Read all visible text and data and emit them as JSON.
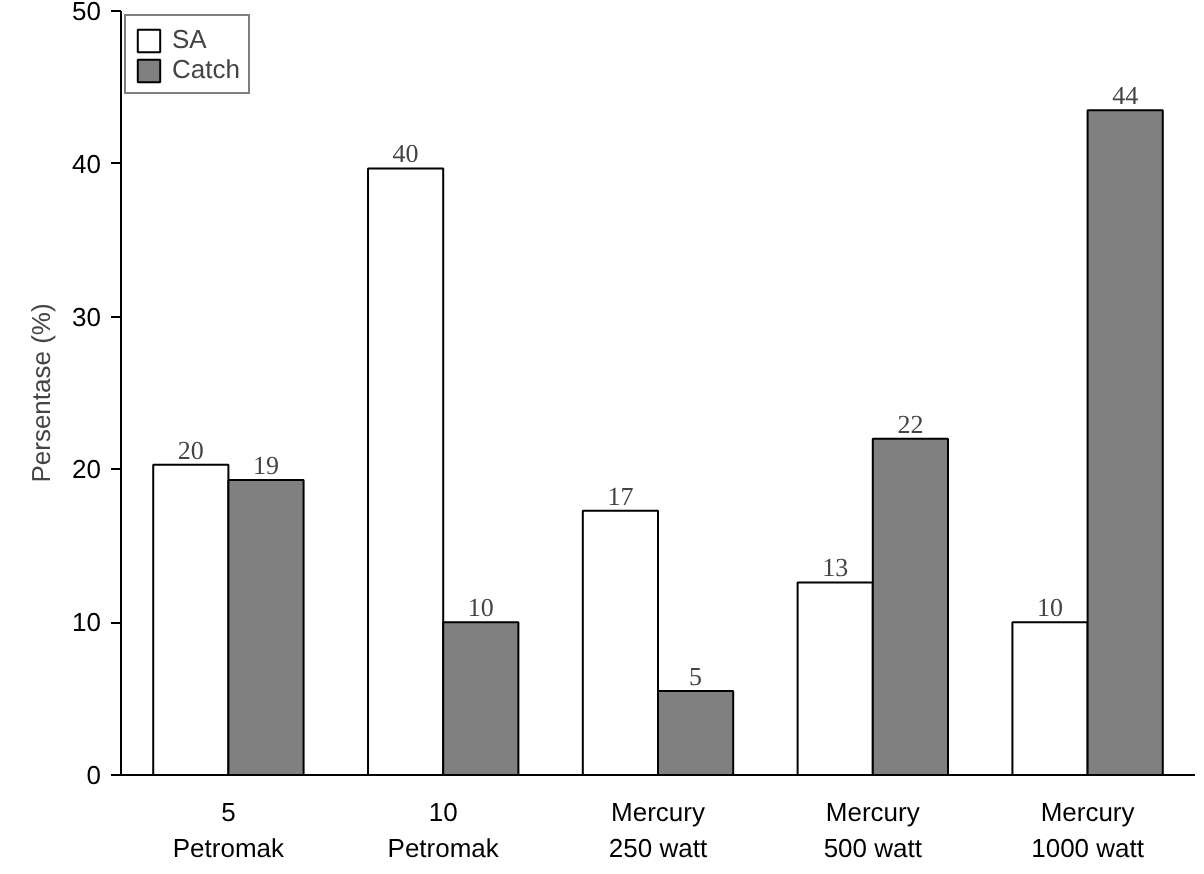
{
  "chart_data": {
    "type": "bar",
    "ylabel": "Persentase (%)",
    "categories": [
      "5\nPetromak",
      "10\nPetromak",
      "Mercury\n250 watt",
      "Mercury\n500 watt",
      "Mercury\n1000 watt"
    ],
    "series": [
      {
        "name": "SA",
        "color": "#ffffff",
        "values": [
          20.3,
          39.7,
          17.3,
          12.6,
          10.0
        ],
        "value_labels": [
          "20",
          "40",
          "17",
          "13",
          "10"
        ]
      },
      {
        "name": "Catch",
        "color": "#808080",
        "values": [
          19.3,
          10.0,
          5.5,
          22.0,
          43.5
        ],
        "value_labels": [
          "19",
          "10",
          "5",
          "22",
          "44"
        ]
      }
    ],
    "ylim": [
      0,
      50
    ],
    "yticks": [
      0,
      10,
      20,
      30,
      40,
      50
    ],
    "grid": false,
    "legend": "top left"
  }
}
